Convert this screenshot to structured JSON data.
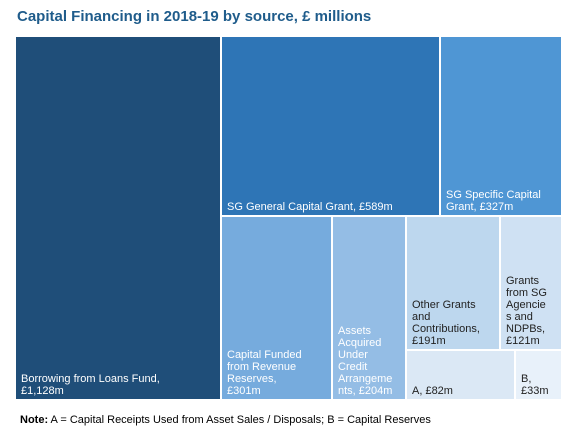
{
  "chart_data": {
    "type": "treemap",
    "title": "Capital Financing in 2018-19 by source, £ millions",
    "unit": "£ millions",
    "items": [
      {
        "key": "borrowing",
        "label": "Borrowing from Loans Fund, £1,128m",
        "value": 1128,
        "color": "#1f4e79",
        "text_color": "#ffffff"
      },
      {
        "key": "sg_general",
        "label": "SG General Capital Grant, £589m",
        "value": 589,
        "color": "#2e75b6",
        "text_color": "#ffffff"
      },
      {
        "key": "sg_specific",
        "label": "SG Specific Capital Grant, £327m",
        "value": 327,
        "color": "#4f96d4",
        "text_color": "#ffffff"
      },
      {
        "key": "cfr",
        "label": "Capital Funded from Revenue Reserves, £301m",
        "value": 301,
        "color": "#76abdd",
        "text_color": "#ffffff"
      },
      {
        "key": "assets",
        "label": "Assets Acquired Under Credit Arrangements, £204m",
        "value": 204,
        "color": "#94bde5",
        "text_color": "#ffffff"
      },
      {
        "key": "other",
        "label": "Other Grants and Contributions, £191m",
        "value": 191,
        "color": "#bdd7ee",
        "text_color": "#222222"
      },
      {
        "key": "sg_agencies",
        "label": "Grants from SG Agencies and NDPBs, £121m",
        "value": 121,
        "color": "#cfe1f3",
        "text_color": "#222222"
      },
      {
        "key": "a",
        "label": "A, £82m",
        "value": 82,
        "color": "#dbe8f5",
        "text_color": "#222222"
      },
      {
        "key": "b",
        "label": "B, £33m",
        "value": 33,
        "color": "#e8f1fa",
        "text_color": "#222222"
      }
    ]
  },
  "note": {
    "prefix": "Note:",
    "text": " A = Capital Receipts Used from Asset Sales / Disposals; B = Capital Reserves"
  }
}
